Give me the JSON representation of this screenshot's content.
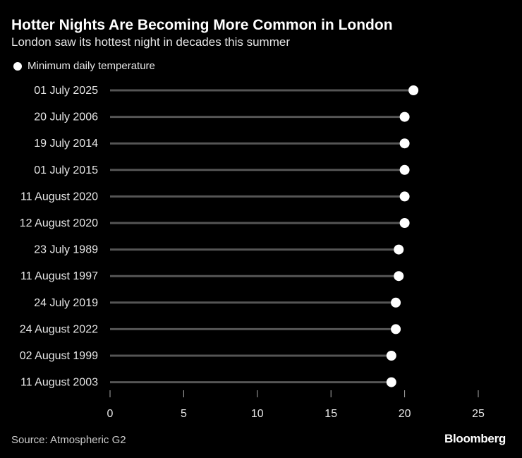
{
  "chart_data": {
    "type": "lollipop",
    "title": "Hotter Nights Are Becoming More Common in London",
    "subtitle": "London saw its hottest night in decades this summer",
    "legend": {
      "label": "Minimum daily temperature",
      "placement": "top-left"
    },
    "categories": [
      "01 July 2025",
      "20 July 2006",
      "19 July 2014",
      "01 July 2015",
      "11 August 2020",
      "12 August 2020",
      "23 July 1989",
      "11 August 1997",
      "24 July 2019",
      "24 August 2022",
      "02 August 1999",
      "11 August 2003"
    ],
    "series": [
      {
        "name": "Minimum daily temperature",
        "values": [
          20.6,
          20.0,
          20.0,
          20.0,
          20.0,
          20.0,
          19.6,
          19.6,
          19.4,
          19.4,
          19.1,
          19.1
        ]
      }
    ],
    "xlim": [
      0,
      25
    ],
    "xticks": [
      0,
      5,
      10,
      15,
      20,
      25
    ],
    "grid": false,
    "colors": {
      "background": "#000000",
      "dot": "#ffffff",
      "stem": "#555555"
    }
  },
  "footer": {
    "source": "Source: Atmospheric G2",
    "brand": "Bloomberg"
  }
}
